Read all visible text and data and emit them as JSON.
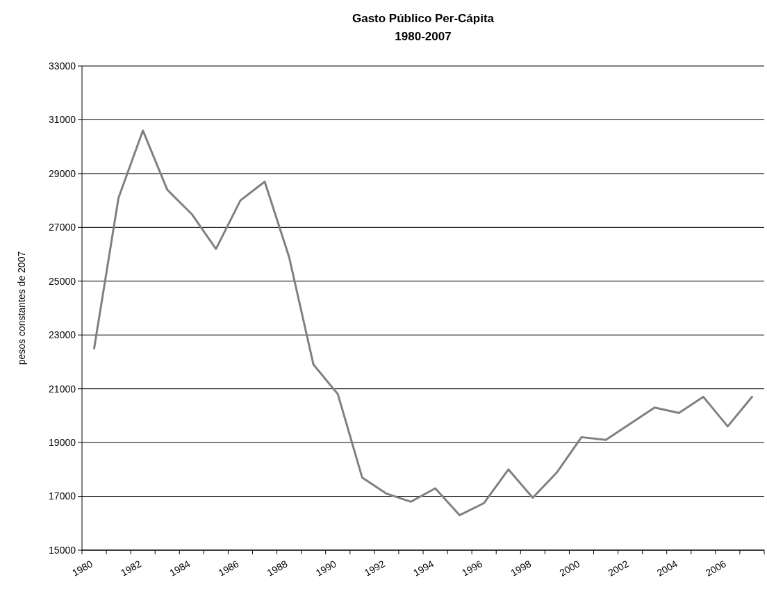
{
  "chart_data": {
    "type": "line",
    "title": "Gasto Público Per-Cápita",
    "subtitle": "1980-2007",
    "ylabel": "pesos constantes de 2007",
    "categories": [
      "1980",
      null,
      "1982",
      null,
      "1984",
      null,
      "1986",
      null,
      "1988",
      null,
      "1990",
      null,
      "1992",
      null,
      "1994",
      null,
      "1996",
      null,
      "1998",
      null,
      "2000",
      null,
      "2002",
      null,
      "2004",
      null,
      "2006",
      null
    ],
    "series": [
      {
        "color": "#808080",
        "values": [
          22500,
          28100,
          30600,
          28400,
          27500,
          26200,
          28000,
          28700,
          25900,
          21900,
          20800,
          17700,
          17100,
          16800,
          17300,
          16300,
          16750,
          18000,
          16950,
          17900,
          19200,
          19100,
          19700,
          20300,
          20100,
          20700,
          19600,
          20700
        ]
      }
    ],
    "ylim": [
      15000,
      33000
    ],
    "yticks": [
      15000,
      17000,
      19000,
      21000,
      23000,
      25000,
      27000,
      29000,
      31000,
      33000
    ],
    "grid": "y",
    "marker": "none",
    "line_style": "solid"
  }
}
